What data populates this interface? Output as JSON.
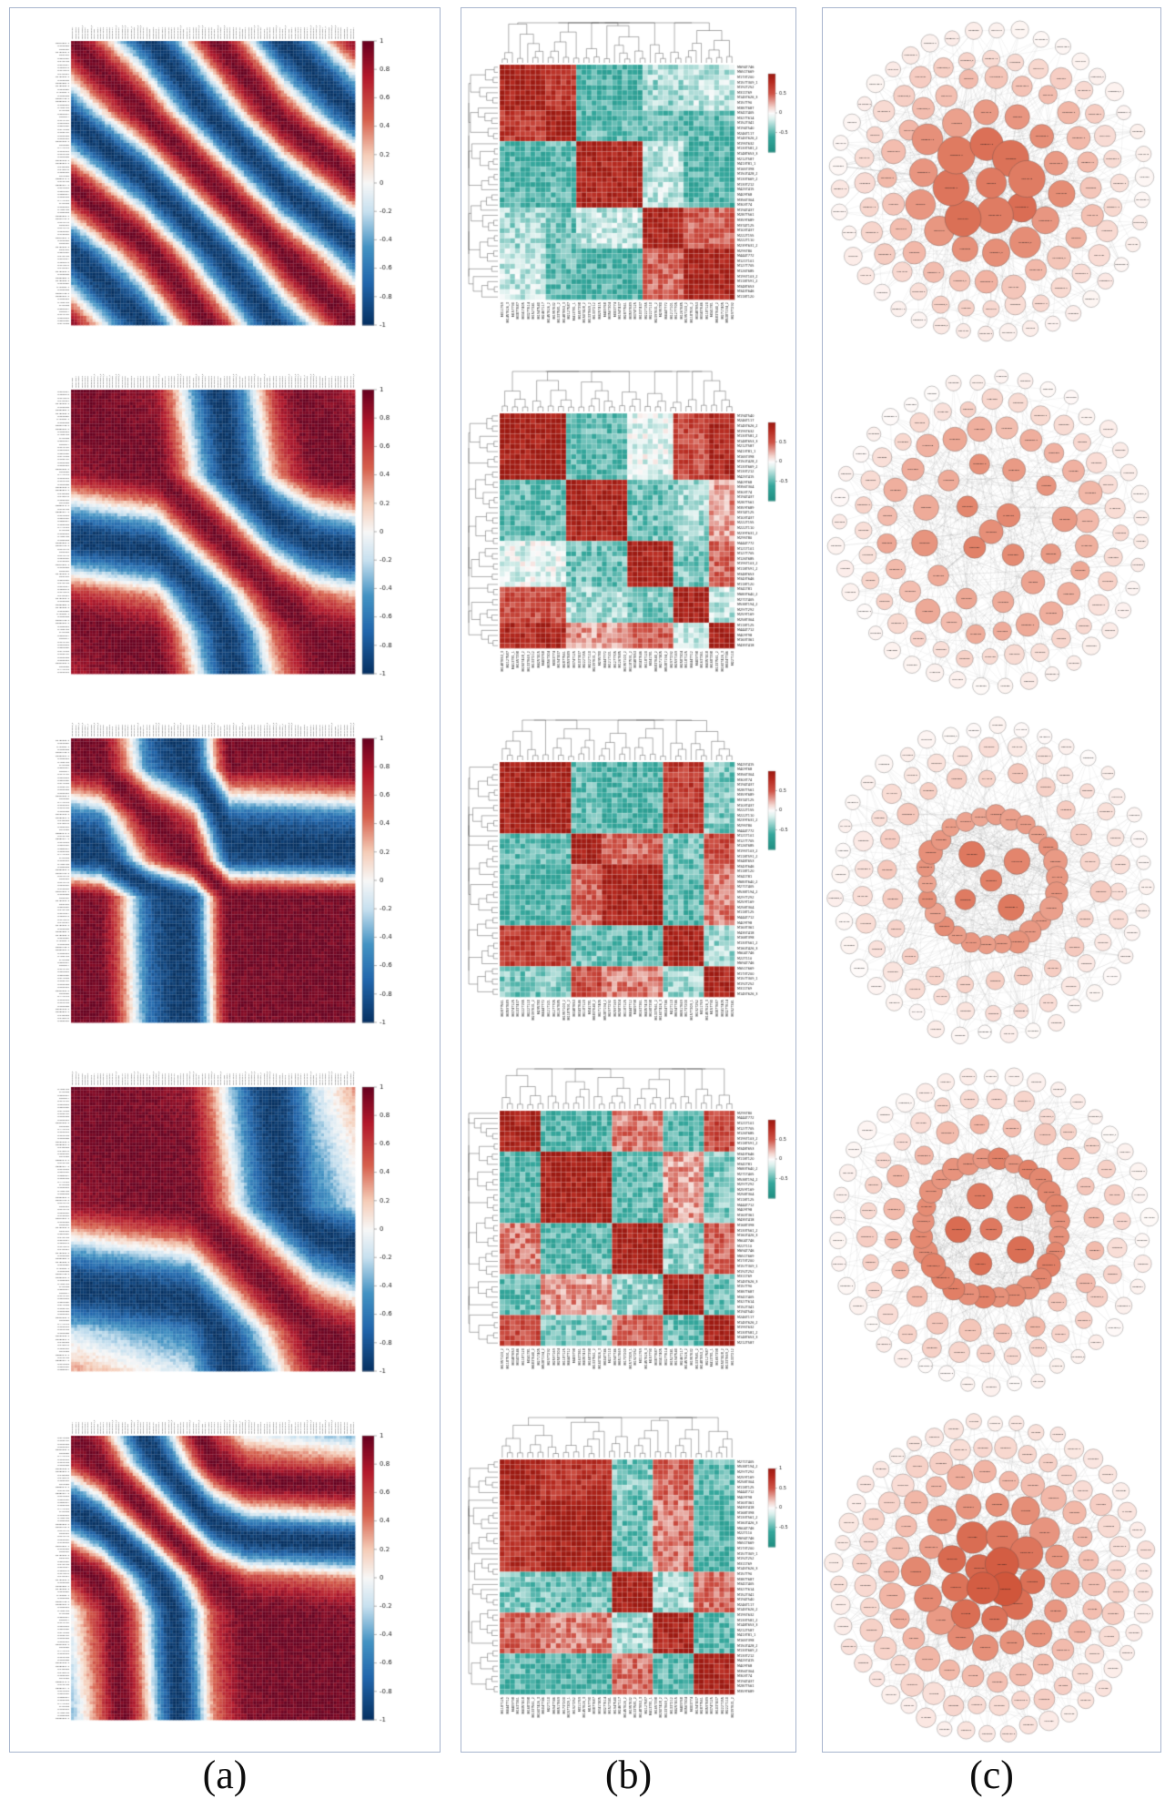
{
  "figure": {
    "background": "#ffffff",
    "border_color": "#a7b4cd",
    "captions": [
      {
        "label": "(a)",
        "description": "metabolite correlation heatmaps"
      },
      {
        "label": "(b)",
        "description": "hierarchically clustered correlation heatmaps with dendrograms"
      },
      {
        "label": "(c)",
        "description": "metabolite correlation networks, concentric layout"
      }
    ]
  },
  "labels": [
    "M694T746",
    "M651T669",
    "M173T200",
    "M157T309_1",
    "M192T252",
    "M311T69",
    "M145T626_3",
    "M157T90",
    "M387T687",
    "M341T405",
    "M327T614",
    "M152T341",
    "M194T540",
    "M246T117",
    "M145T626_2",
    "M195T632",
    "M133T581_2",
    "M148T653_3",
    "M212T587",
    "M413T81_1",
    "M165T398",
    "M150T428_2",
    "M133T669_2",
    "M133T212",
    "M425T415",
    "M409T68",
    "M356T304",
    "M303T74",
    "M194T437",
    "M287T561",
    "M359T689",
    "M374T125",
    "M103T437",
    "M222T155",
    "M222T110",
    "M239T631_2",
    "M295T80",
    "M444T772",
    "M121T101",
    "M127T705",
    "M126T685",
    "M195T103_2",
    "M118T591_2",
    "M348T653",
    "M343T646",
    "M118T120",
    "M341T81",
    "M683T640_2",
    "M271T405",
    "M538T194_2",
    "M297T292",
    "M259T169",
    "M258T304",
    "M118T125",
    "M444T712",
    "M409T98",
    "M163T361",
    "M435T418",
    "M168T398",
    "M133T561_2",
    "M160T426_3",
    "M604T746",
    "M22T110"
  ],
  "colors": {
    "rdbu_stops": [
      [
        -1,
        "#053061"
      ],
      [
        -0.7,
        "#2166ac"
      ],
      [
        -0.45,
        "#4393c3"
      ],
      [
        -0.2,
        "#c7e0ef"
      ],
      [
        0,
        "#f7f7f7"
      ],
      [
        0.2,
        "#f5cdb8"
      ],
      [
        0.45,
        "#d6604d"
      ],
      [
        0.75,
        "#b2182b"
      ],
      [
        1,
        "#67001f"
      ]
    ],
    "redteal_stops": [
      [
        -1,
        "#1e8d80"
      ],
      [
        -0.6,
        "#35a79c"
      ],
      [
        -0.15,
        "#d9efec"
      ],
      [
        0,
        "#fbfbfb"
      ],
      [
        0.15,
        "#f3d3cd"
      ],
      [
        0.5,
        "#cf5448"
      ],
      [
        0.8,
        "#b62a20"
      ],
      [
        1,
        "#9d1a12"
      ]
    ],
    "node_stops": [
      [
        0,
        "#ffffff"
      ],
      [
        0.25,
        "#f9ded7"
      ],
      [
        0.5,
        "#f1b5a5"
      ],
      [
        0.72,
        "#e2836a"
      ],
      [
        1,
        "#cd4d32"
      ]
    ],
    "dendrogram": "#5f5f5f",
    "edge": "rgba(110,110,110,0.22)",
    "grid": "rgba(255,255,255,0.35)",
    "tick_text": "#222222",
    "tiny_label": "#3a3a3a"
  },
  "chart_data": {
    "column_a": {
      "type": "heatmap",
      "subtype": "correlation matrix, red-white-blue",
      "n": 92,
      "value_range": [
        -1,
        1
      ],
      "colorbar_ticks": [
        1,
        0.8,
        0.6,
        0.4,
        0.2,
        0,
        -0.2,
        -0.4,
        -0.6,
        -0.8,
        -1
      ],
      "panels": [
        {
          "seed": 101,
          "span_pi": 3.85,
          "points": [
            [
              0,
              0
            ],
            [
              0.25,
              0.22
            ],
            [
              0.5,
              0.5
            ],
            [
              0.75,
              0.78
            ],
            [
              1,
              1
            ]
          ],
          "label_offset": 0
        },
        {
          "seed": 102,
          "span_pi": 2.2,
          "points": [
            [
              0,
              0
            ],
            [
              0.3,
              0.08
            ],
            [
              0.52,
              0.45
            ],
            [
              0.72,
              0.8
            ],
            [
              0.86,
              0.95
            ],
            [
              1,
              1
            ]
          ],
          "label_offset": 7
        },
        {
          "seed": 103,
          "span_pi": 2.05,
          "points": [
            [
              0,
              0
            ],
            [
              0.1,
              0.03
            ],
            [
              0.27,
              0.37
            ],
            [
              0.43,
              0.55
            ],
            [
              0.56,
              0.96
            ],
            [
              1,
              1
            ]
          ],
          "label_offset": 14
        },
        {
          "seed": 104,
          "span_pi": 1.6,
          "points": [
            [
              0,
              0
            ],
            [
              0.42,
              0.1
            ],
            [
              0.66,
              0.55
            ],
            [
              0.86,
              0.9
            ],
            [
              1,
              1
            ]
          ],
          "label_offset": 21
        },
        {
          "seed": 105,
          "span_pi": 2.6,
          "points": [
            [
              0,
              0
            ],
            [
              0.1,
              0.1
            ],
            [
              0.28,
              0.42
            ],
            [
              0.5,
              0.85
            ],
            [
              0.62,
              0.96
            ],
            [
              1,
              1
            ]
          ],
          "label_offset": 28
        }
      ]
    },
    "column_b": {
      "type": "heatmap",
      "subtype": "clustered correlation heatmap with top and left dendrograms, red-white-teal",
      "n": 46,
      "value_range": [
        -1,
        1
      ],
      "panels": [
        {
          "seed": 201,
          "cb_ticks": [
            0.5,
            0,
            -0.5
          ],
          "label_offset": 0,
          "sizes": [
            9,
            6,
            13,
            8,
            10
          ],
          "block_values": [
            [
              0.9,
              0.7,
              -0.55,
              -0.3,
              -0.2
            ],
            [
              0.7,
              0.95,
              -0.5,
              -0.45,
              -0.5
            ],
            [
              -0.55,
              -0.5,
              0.85,
              -0.2,
              -0.55
            ],
            [
              -0.3,
              -0.45,
              -0.2,
              0.9,
              0.5
            ],
            [
              -0.2,
              -0.5,
              -0.55,
              0.5,
              0.9
            ]
          ]
        },
        {
          "seed": 202,
          "cb_ticks": [
            0.5,
            0,
            -0.5
          ],
          "label_offset": 12,
          "sizes": [
            13,
            12,
            9,
            7,
            5
          ],
          "block_values": [
            [
              0.95,
              -0.5,
              -0.1,
              0.6,
              0.85
            ],
            [
              -0.5,
              0.9,
              -0.45,
              -0.3,
              0.3
            ],
            [
              -0.1,
              -0.45,
              0.9,
              -0.4,
              0.5
            ],
            [
              0.6,
              -0.3,
              -0.4,
              0.9,
              -0.2
            ],
            [
              0.85,
              0.3,
              0.5,
              -0.2,
              0.95
            ]
          ]
        },
        {
          "seed": 203,
          "cb_ticks": [
            0.5,
            0,
            -0.5
          ],
          "label_offset": 24,
          "sizes": [
            14,
            6,
            12,
            8,
            6
          ],
          "block_values": [
            [
              0.9,
              -0.5,
              -0.55,
              0.7,
              -0.4
            ],
            [
              -0.5,
              0.95,
              0.5,
              -0.45,
              0.6
            ],
            [
              -0.55,
              0.5,
              0.9,
              -0.5,
              0.4
            ],
            [
              0.7,
              -0.45,
              -0.5,
              0.9,
              -0.3
            ],
            [
              -0.4,
              0.6,
              0.4,
              -0.3,
              0.9
            ]
          ]
        },
        {
          "seed": 204,
          "cb_ticks": [
            0.5,
            0,
            -0.5
          ],
          "label_offset": 36,
          "sizes": [
            8,
            14,
            10,
            8,
            6
          ],
          "block_values": [
            [
              0.9,
              -0.55,
              0.4,
              -0.5,
              0.6
            ],
            [
              -0.55,
              0.92,
              -0.5,
              0.3,
              -0.4
            ],
            [
              0.4,
              -0.5,
              0.9,
              -0.35,
              0.5
            ],
            [
              -0.5,
              0.3,
              -0.35,
              0.88,
              -0.45
            ],
            [
              0.6,
              -0.4,
              0.5,
              -0.45,
              0.9
            ]
          ]
        },
        {
          "seed": 205,
          "cb_ticks": [
            1,
            0.5,
            0,
            -0.5
          ],
          "label_offset": 48,
          "sizes": [
            8,
            14,
            8,
            8,
            8
          ],
          "block_values": [
            [
              0.9,
              0.75,
              -0.4,
              0.5,
              -0.5
            ],
            [
              0.75,
              0.95,
              -0.45,
              0.4,
              -0.55
            ],
            [
              -0.4,
              -0.45,
              0.9,
              -0.3,
              0.45
            ],
            [
              0.5,
              0.4,
              -0.3,
              0.85,
              -0.5
            ],
            [
              -0.5,
              -0.55,
              0.45,
              -0.5,
              0.92
            ]
          ]
        }
      ]
    },
    "column_c": {
      "type": "network",
      "subtype": "correlation network, concentric rings, node color/size = strength",
      "panels": [
        {
          "seed": 301,
          "edges": 520,
          "rings": [
            {
              "n": 42,
              "r": 168,
              "size": 9,
              "shade": 0.12,
              "jitter": 4
            },
            {
              "n": 32,
              "r": 140,
              "size": 10.5,
              "shade": 0.3,
              "jitter": 5
            },
            {
              "n": 24,
              "r": 112,
              "size": 12,
              "shade": 0.45,
              "jitter": 5
            },
            {
              "n": 14,
              "r": 78,
              "size": 15,
              "shade": 0.62,
              "jitter": 8
            },
            {
              "n": 8,
              "r": 42,
              "size": 18,
              "shade": 0.78,
              "jitter": 8
            },
            {
              "n": 1,
              "r": 0,
              "size": 17,
              "shade": 0.8,
              "jitter": 0
            }
          ]
        },
        {
          "seed": 302,
          "edges": 430,
          "rings": [
            {
              "n": 40,
              "r": 168,
              "size": 8.5,
              "shade": 0.1,
              "jitter": 4
            },
            {
              "n": 32,
              "r": 141,
              "size": 10,
              "shade": 0.28,
              "jitter": 5
            },
            {
              "n": 24,
              "r": 112,
              "size": 12,
              "shade": 0.5,
              "jitter": 6
            },
            {
              "n": 12,
              "r": 76,
              "size": 12.5,
              "shade": 0.6,
              "jitter": 7
            },
            {
              "n": 4,
              "r": 34,
              "size": 13,
              "shade": 0.72,
              "jitter": 10
            },
            {
              "n": 1,
              "r": 0,
              "size": 13,
              "shade": 0.72,
              "jitter": 0
            }
          ]
        },
        {
          "seed": 303,
          "edges": 560,
          "rings": [
            {
              "n": 40,
              "r": 170,
              "size": 8.5,
              "shade": 0.08,
              "jitter": 5
            },
            {
              "n": 30,
              "r": 144,
              "size": 9.5,
              "shade": 0.22,
              "jitter": 6
            },
            {
              "n": 22,
              "r": 116,
              "size": 10.5,
              "shade": 0.35,
              "jitter": 6
            },
            {
              "n": 26,
              "r": 72,
              "size": 11.5,
              "shade": 0.62,
              "jitter": 2
            },
            {
              "n": 4,
              "r": 36,
              "size": 13,
              "shade": 0.75,
              "jitter": 1
            },
            {
              "n": 1,
              "r": 0,
              "size": 13,
              "shade": 0.78,
              "jitter": 0
            }
          ]
        },
        {
          "seed": 304,
          "edges": 560,
          "rings": [
            {
              "n": 42,
              "r": 170,
              "size": 9,
              "shade": 0.1,
              "jitter": 5
            },
            {
              "n": 30,
              "r": 142,
              "size": 10,
              "shade": 0.3,
              "jitter": 6
            },
            {
              "n": 20,
              "r": 114,
              "size": 11,
              "shade": 0.45,
              "jitter": 6
            },
            {
              "n": 28,
              "r": 76,
              "size": 12,
              "shade": 0.68,
              "jitter": 2
            },
            {
              "n": 5,
              "r": 38,
              "size": 13,
              "shade": 0.78,
              "jitter": 2
            },
            {
              "n": 1,
              "r": 0,
              "size": 14,
              "shade": 0.8,
              "jitter": 0
            }
          ]
        },
        {
          "seed": 305,
          "edges": 650,
          "rings": [
            {
              "n": 46,
              "r": 170,
              "size": 9.5,
              "shade": 0.18,
              "jitter": 4
            },
            {
              "n": 36,
              "r": 142,
              "size": 11,
              "shade": 0.3,
              "jitter": 5
            },
            {
              "n": 26,
              "r": 112,
              "size": 12.5,
              "shade": 0.48,
              "jitter": 5
            },
            {
              "n": 16,
              "r": 78,
              "size": 14.5,
              "shade": 0.65,
              "jitter": 6
            },
            {
              "n": 9,
              "r": 44,
              "size": 16,
              "shade": 0.82,
              "jitter": 5
            },
            {
              "n": 4,
              "r": 16,
              "size": 18,
              "shade": 0.9,
              "jitter": 4
            }
          ]
        }
      ]
    }
  }
}
